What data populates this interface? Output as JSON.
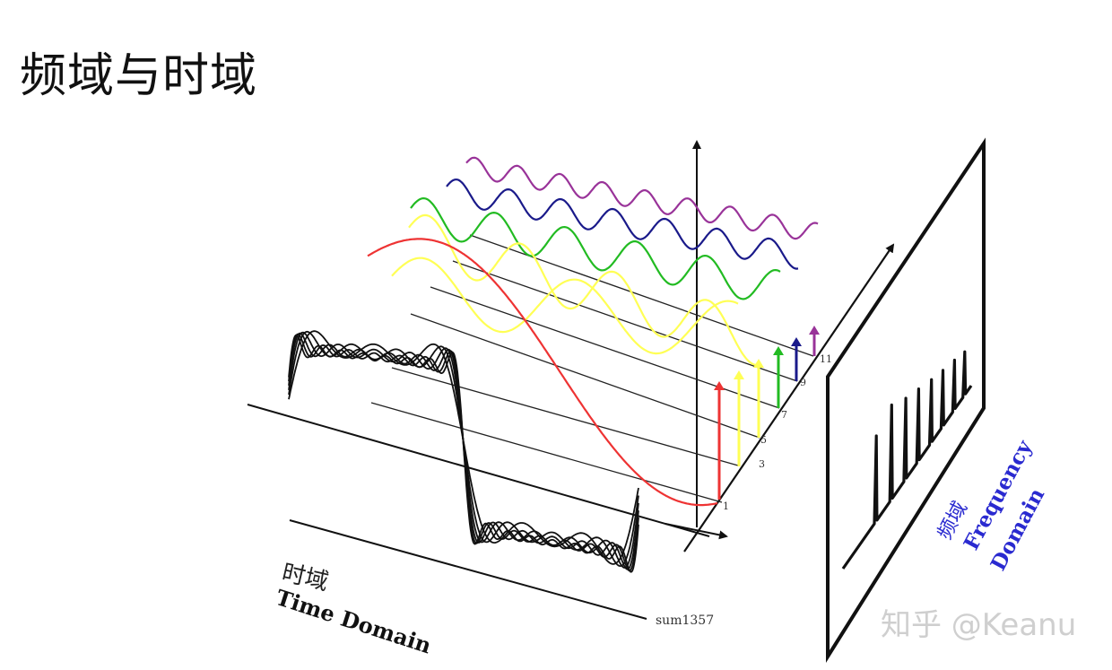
{
  "title": "频域与时域",
  "time_domain": {
    "label_cn": "时域",
    "label_en": "Time Domain"
  },
  "frequency_domain": {
    "label_cn": "频域",
    "label_en_line1": "Frequency",
    "label_en_line2": "Domain"
  },
  "bottom_label": "sum1357",
  "harmonic_labels": [
    "1",
    "3",
    "5",
    "7",
    "9",
    "11"
  ],
  "watermark": "知乎 @Keanu",
  "colors": {
    "h1": "#ee3333",
    "h3": "#ffff55",
    "h5": "#ffff55",
    "h7": "#22bb22",
    "h9": "#1a1a8a",
    "h11": "#993399",
    "axis": "#111111",
    "blue_label": "#2a2ad0"
  }
}
